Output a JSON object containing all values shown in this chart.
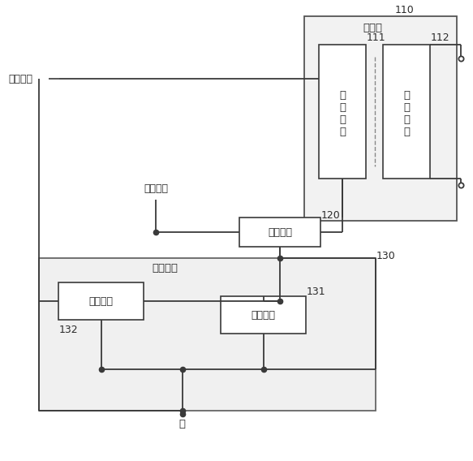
{
  "bg_color": "#ffffff",
  "line_color": "#3a3a3a",
  "labels": {
    "power_pos": "电源正极",
    "pulse_voltage": "脉冲电压",
    "transformer": "变压器",
    "primary_coil": "初\n级\n线\n圈",
    "secondary_coil": "次\n级\n线\n圈",
    "oscillation_switch": "振荡开关",
    "current_limit_module": "限流模块",
    "current_limit_switch": "限流开关",
    "current_limit_resistor": "限流电阻",
    "ground": "地",
    "ref_110": "110",
    "ref_111": "111",
    "ref_112": "112",
    "ref_120": "120",
    "ref_130": "130",
    "ref_131": "131",
    "ref_132": "132"
  }
}
